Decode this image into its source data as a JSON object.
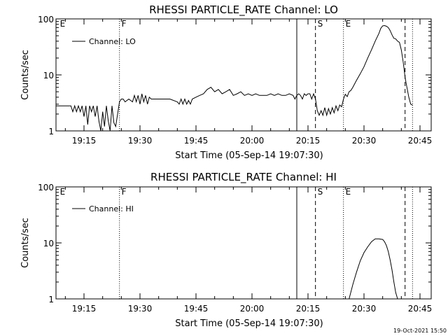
{
  "chart_data": [
    {
      "type": "line",
      "title": "RHESSI PARTICLE_RATE Channel: LO",
      "xlabel": "Start Time (05-Sep-14 19:07:30)",
      "ylabel": "Counts/sec",
      "yscale": "log",
      "ylim": [
        1,
        100
      ],
      "xlim": [
        "19:07:30",
        "20:48:00"
      ],
      "xtick_labels": [
        "19:15",
        "19:30",
        "19:45",
        "20:00",
        "20:15",
        "20:30",
        "20:45"
      ],
      "ytick_labels": [
        "1",
        "10",
        "100"
      ],
      "legend": {
        "position": "top-left",
        "entries": [
          "Channel: LO"
        ]
      },
      "markers": [
        {
          "label": "E",
          "time": "19:08:00",
          "style": "none"
        },
        {
          "label": "F",
          "time": "19:24:30",
          "style": "dotted"
        },
        {
          "label": "",
          "time": "20:12:00",
          "style": "solid"
        },
        {
          "label": "S",
          "time": "20:17:00",
          "style": "dashed"
        },
        {
          "label": "E",
          "time": "20:24:30",
          "style": "dotted"
        },
        {
          "label": "",
          "time": "20:41:00",
          "style": "dashed"
        },
        {
          "label": "",
          "time": "20:43:00",
          "style": "dotted"
        }
      ],
      "series": [
        {
          "name": "Channel: LO",
          "x": [
            "19:07:30",
            "19:11:30",
            "19:12:00",
            "19:12:30",
            "19:13:00",
            "19:13:30",
            "19:14:00",
            "19:14:30",
            "19:15:00",
            "19:15:30",
            "19:16:00",
            "19:16:30",
            "19:17:00",
            "19:17:30",
            "19:18:00",
            "19:18:30",
            "19:19:00",
            "19:19:30",
            "19:20:00",
            "19:20:30",
            "19:21:00",
            "19:21:30",
            "19:22:00",
            "19:22:30",
            "19:23:00",
            "19:23:30",
            "19:24:00",
            "19:24:30",
            "19:25:00",
            "19:25:30",
            "19:26:00",
            "19:27:00",
            "19:28:00",
            "19:28:30",
            "19:29:00",
            "19:29:30",
            "19:30:00",
            "19:30:30",
            "19:31:00",
            "19:31:30",
            "19:32:00",
            "19:32:30",
            "19:33:00",
            "19:34:00",
            "19:36:00",
            "19:38:00",
            "19:40:00",
            "19:40:30",
            "19:41:00",
            "19:41:30",
            "19:42:00",
            "19:42:30",
            "19:43:00",
            "19:43:30",
            "19:44:00",
            "19:45:00",
            "19:46:00",
            "19:47:00",
            "19:48:00",
            "19:49:00",
            "19:50:00",
            "19:51:00",
            "19:52:00",
            "19:53:00",
            "19:54:00",
            "19:55:00",
            "19:56:00",
            "19:57:00",
            "19:58:00",
            "19:59:00",
            "20:00:00",
            "20:01:00",
            "20:02:00",
            "20:03:00",
            "20:04:00",
            "20:05:00",
            "20:06:00",
            "20:07:00",
            "20:08:00",
            "20:09:00",
            "20:10:00",
            "20:11:00",
            "20:11:30",
            "20:12:00",
            "20:12:30",
            "20:13:00",
            "20:13:30",
            "20:14:00",
            "20:14:30",
            "20:15:00",
            "20:15:30",
            "20:16:00",
            "20:16:30",
            "20:17:00",
            "20:17:30",
            "20:18:00",
            "20:18:30",
            "20:19:00",
            "20:19:30",
            "20:20:00",
            "20:20:30",
            "20:21:00",
            "20:21:30",
            "20:22:00",
            "20:22:30",
            "20:23:00",
            "20:23:30",
            "20:24:00",
            "20:24:30",
            "20:25:00",
            "20:25:30",
            "20:26:00",
            "20:26:30",
            "20:27:00",
            "20:28:00",
            "20:29:00",
            "20:30:00",
            "20:31:00",
            "20:32:00",
            "20:33:00",
            "20:34:00",
            "20:34:30",
            "20:35:00",
            "20:35:30",
            "20:36:00",
            "20:36:30",
            "20:37:00",
            "20:37:30",
            "20:38:00",
            "20:38:30",
            "20:39:00",
            "20:39:30",
            "20:40:00",
            "20:40:30",
            "20:41:00",
            "20:41:30",
            "20:42:00",
            "20:42:30",
            "20:43:00"
          ],
          "y": [
            2.8,
            2.8,
            2.2,
            2.8,
            2.2,
            2.8,
            2.2,
            2.8,
            1.8,
            2.8,
            1.3,
            2.8,
            2.2,
            2.8,
            1.8,
            2.8,
            1.5,
            1.0,
            2.2,
            1.2,
            2.8,
            1.5,
            1.0,
            2.8,
            1.4,
            1.2,
            2.0,
            3.3,
            3.7,
            3.7,
            3.3,
            3.7,
            3.3,
            4.3,
            3.3,
            4.3,
            3.0,
            4.6,
            3.3,
            4.3,
            3.0,
            4.0,
            3.7,
            3.7,
            3.7,
            3.7,
            3.3,
            3.0,
            3.7,
            3.0,
            3.7,
            3.0,
            3.5,
            3.0,
            3.7,
            4.0,
            4.3,
            4.6,
            5.5,
            6.0,
            5.0,
            5.5,
            4.6,
            5.0,
            5.5,
            4.3,
            4.6,
            5.0,
            4.3,
            4.6,
            4.3,
            4.6,
            4.3,
            4.3,
            4.3,
            4.6,
            4.3,
            4.6,
            4.3,
            4.3,
            4.6,
            4.3,
            3.7,
            4.3,
            4.6,
            4.3,
            3.7,
            4.6,
            4.3,
            4.6,
            4.6,
            3.7,
            4.6,
            3.7,
            2.3,
            1.9,
            2.3,
            1.9,
            2.6,
            1.9,
            2.5,
            2.0,
            2.6,
            2.1,
            2.8,
            2.3,
            2.9,
            2.7,
            3.7,
            4.5,
            4.1,
            5.0,
            5.3,
            6.0,
            8.0,
            10.5,
            14,
            20,
            28,
            40,
            55,
            68,
            75,
            76,
            74,
            70,
            62,
            52,
            45,
            44,
            40,
            38,
            28,
            17,
            9,
            6,
            4,
            3,
            2.9
          ]
        }
      ]
    },
    {
      "type": "line",
      "title": "RHESSI PARTICLE_RATE Channel: HI",
      "xlabel": "Start Time (05-Sep-14 19:07:30)",
      "ylabel": "Counts/sec",
      "yscale": "log",
      "ylim": [
        1,
        100
      ],
      "xlim": [
        "19:07:30",
        "20:48:00"
      ],
      "xtick_labels": [
        "19:15",
        "19:30",
        "19:45",
        "20:00",
        "20:15",
        "20:30",
        "20:45"
      ],
      "ytick_labels": [
        "1",
        "10",
        "100"
      ],
      "legend": {
        "position": "top-left",
        "entries": [
          "Channel: HI"
        ]
      },
      "markers": [
        {
          "label": "E",
          "time": "19:08:00",
          "style": "none"
        },
        {
          "label": "F",
          "time": "19:24:30",
          "style": "dotted"
        },
        {
          "label": "",
          "time": "20:12:00",
          "style": "solid"
        },
        {
          "label": "S",
          "time": "20:17:00",
          "style": "dashed"
        },
        {
          "label": "E",
          "time": "20:24:30",
          "style": "dotted"
        },
        {
          "label": "",
          "time": "20:41:00",
          "style": "dashed"
        },
        {
          "label": "",
          "time": "20:43:00",
          "style": "dotted"
        }
      ],
      "series": [
        {
          "name": "Channel: HI",
          "x": [
            "20:26:00",
            "20:27:00",
            "20:28:00",
            "20:29:00",
            "20:30:00",
            "20:31:00",
            "20:32:00",
            "20:33:00",
            "20:34:00",
            "20:35:00",
            "20:35:30",
            "20:36:00",
            "20:36:30",
            "20:37:00",
            "20:37:30",
            "20:38:00",
            "20:38:30",
            "20:39:00"
          ],
          "y": [
            1.0,
            1.8,
            3.0,
            4.8,
            6.7,
            8.5,
            10.5,
            11.8,
            11.8,
            11.5,
            10.5,
            9.0,
            7.0,
            5.0,
            3.3,
            2.0,
            1.3,
            1.0
          ]
        }
      ]
    }
  ],
  "timestamp": "19-Oct-2021 15:50"
}
